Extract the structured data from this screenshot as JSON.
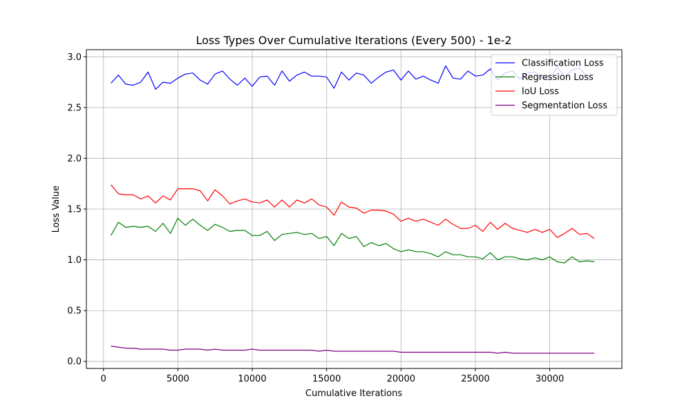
{
  "chart_data": {
    "type": "line",
    "title": "Loss Types Over Cumulative Iterations (Every 500) - 1e-2",
    "xlabel": "Cumulative Iterations",
    "ylabel": "Loss Value",
    "xlim": [
      -1150,
      34850
    ],
    "ylim": [
      -0.07,
      3.07
    ],
    "x_ticks": [
      0,
      5000,
      10000,
      15000,
      20000,
      25000,
      30000
    ],
    "y_ticks": [
      0.0,
      0.5,
      1.0,
      1.5,
      2.0,
      2.5,
      3.0
    ],
    "x_tick_labels": [
      "0",
      "5000",
      "10000",
      "15000",
      "20000",
      "25000",
      "30000"
    ],
    "y_tick_labels": [
      "0.0",
      "0.5",
      "1.0",
      "1.5",
      "2.0",
      "2.5",
      "3.0"
    ],
    "grid": true,
    "legend_position": "top-right",
    "x": [
      500,
      1000,
      1500,
      2000,
      2500,
      3000,
      3500,
      4000,
      4500,
      5000,
      5500,
      6000,
      6500,
      7000,
      7500,
      8000,
      8500,
      9000,
      9500,
      10000,
      10500,
      11000,
      11500,
      12000,
      12500,
      13000,
      13500,
      14000,
      14500,
      15000,
      15500,
      16000,
      16500,
      17000,
      17500,
      18000,
      18500,
      19000,
      19500,
      20000,
      20500,
      21000,
      21500,
      22000,
      22500,
      23000,
      23500,
      24000,
      24500,
      25000,
      25500,
      26000,
      26500,
      27000,
      27500,
      28000,
      28500,
      29000,
      29500,
      30000,
      30500,
      31000,
      31500,
      32000,
      32500,
      33000
    ],
    "series": [
      {
        "name": "Classification Loss",
        "color": "#0000ff",
        "values": [
          2.74,
          2.82,
          2.73,
          2.72,
          2.75,
          2.85,
          2.68,
          2.75,
          2.74,
          2.79,
          2.83,
          2.84,
          2.77,
          2.73,
          2.83,
          2.86,
          2.78,
          2.72,
          2.79,
          2.71,
          2.8,
          2.81,
          2.72,
          2.86,
          2.76,
          2.82,
          2.85,
          2.81,
          2.81,
          2.8,
          2.69,
          2.85,
          2.77,
          2.84,
          2.82,
          2.74,
          2.8,
          2.85,
          2.87,
          2.77,
          2.86,
          2.78,
          2.81,
          2.77,
          2.74,
          2.91,
          2.79,
          2.78,
          2.86,
          2.81,
          2.82,
          2.88,
          2.77,
          2.84,
          2.86,
          2.78,
          2.84,
          2.85,
          2.79,
          2.78,
          2.9,
          2.8,
          2.87,
          2.89,
          2.81,
          2.83
        ]
      },
      {
        "name": "Regression Loss",
        "color": "#008000",
        "values": [
          1.24,
          1.37,
          1.32,
          1.33,
          1.32,
          1.33,
          1.28,
          1.36,
          1.26,
          1.41,
          1.34,
          1.4,
          1.34,
          1.29,
          1.35,
          1.32,
          1.28,
          1.29,
          1.29,
          1.24,
          1.24,
          1.28,
          1.19,
          1.25,
          1.26,
          1.27,
          1.25,
          1.26,
          1.21,
          1.23,
          1.14,
          1.26,
          1.21,
          1.23,
          1.13,
          1.17,
          1.14,
          1.16,
          1.11,
          1.08,
          1.1,
          1.08,
          1.08,
          1.06,
          1.03,
          1.08,
          1.05,
          1.05,
          1.03,
          1.03,
          1.01,
          1.07,
          1.0,
          1.03,
          1.03,
          1.01,
          1.0,
          1.02,
          1.0,
          1.03,
          0.98,
          0.97,
          1.03,
          0.98,
          0.99,
          0.98
        ]
      },
      {
        "name": "IoU Loss",
        "color": "#ff0000",
        "values": [
          1.74,
          1.65,
          1.64,
          1.64,
          1.6,
          1.63,
          1.56,
          1.63,
          1.59,
          1.7,
          1.7,
          1.7,
          1.68,
          1.58,
          1.69,
          1.63,
          1.55,
          1.58,
          1.6,
          1.57,
          1.56,
          1.59,
          1.52,
          1.59,
          1.52,
          1.59,
          1.56,
          1.6,
          1.54,
          1.52,
          1.44,
          1.57,
          1.52,
          1.51,
          1.46,
          1.49,
          1.49,
          1.48,
          1.45,
          1.38,
          1.41,
          1.38,
          1.4,
          1.37,
          1.34,
          1.4,
          1.35,
          1.31,
          1.31,
          1.34,
          1.28,
          1.37,
          1.3,
          1.36,
          1.31,
          1.29,
          1.27,
          1.3,
          1.27,
          1.3,
          1.22,
          1.26,
          1.31,
          1.25,
          1.26,
          1.21
        ]
      },
      {
        "name": "Segmentation Loss",
        "color": "#800080",
        "values": [
          0.15,
          0.14,
          0.13,
          0.13,
          0.12,
          0.12,
          0.12,
          0.12,
          0.11,
          0.11,
          0.12,
          0.12,
          0.12,
          0.11,
          0.12,
          0.11,
          0.11,
          0.11,
          0.11,
          0.12,
          0.11,
          0.11,
          0.11,
          0.11,
          0.11,
          0.11,
          0.11,
          0.11,
          0.1,
          0.11,
          0.1,
          0.1,
          0.1,
          0.1,
          0.1,
          0.1,
          0.1,
          0.1,
          0.1,
          0.09,
          0.09,
          0.09,
          0.09,
          0.09,
          0.09,
          0.09,
          0.09,
          0.09,
          0.09,
          0.09,
          0.09,
          0.09,
          0.08,
          0.09,
          0.08,
          0.08,
          0.08,
          0.08,
          0.08,
          0.08,
          0.08,
          0.08,
          0.08,
          0.08,
          0.08,
          0.08
        ]
      }
    ]
  }
}
